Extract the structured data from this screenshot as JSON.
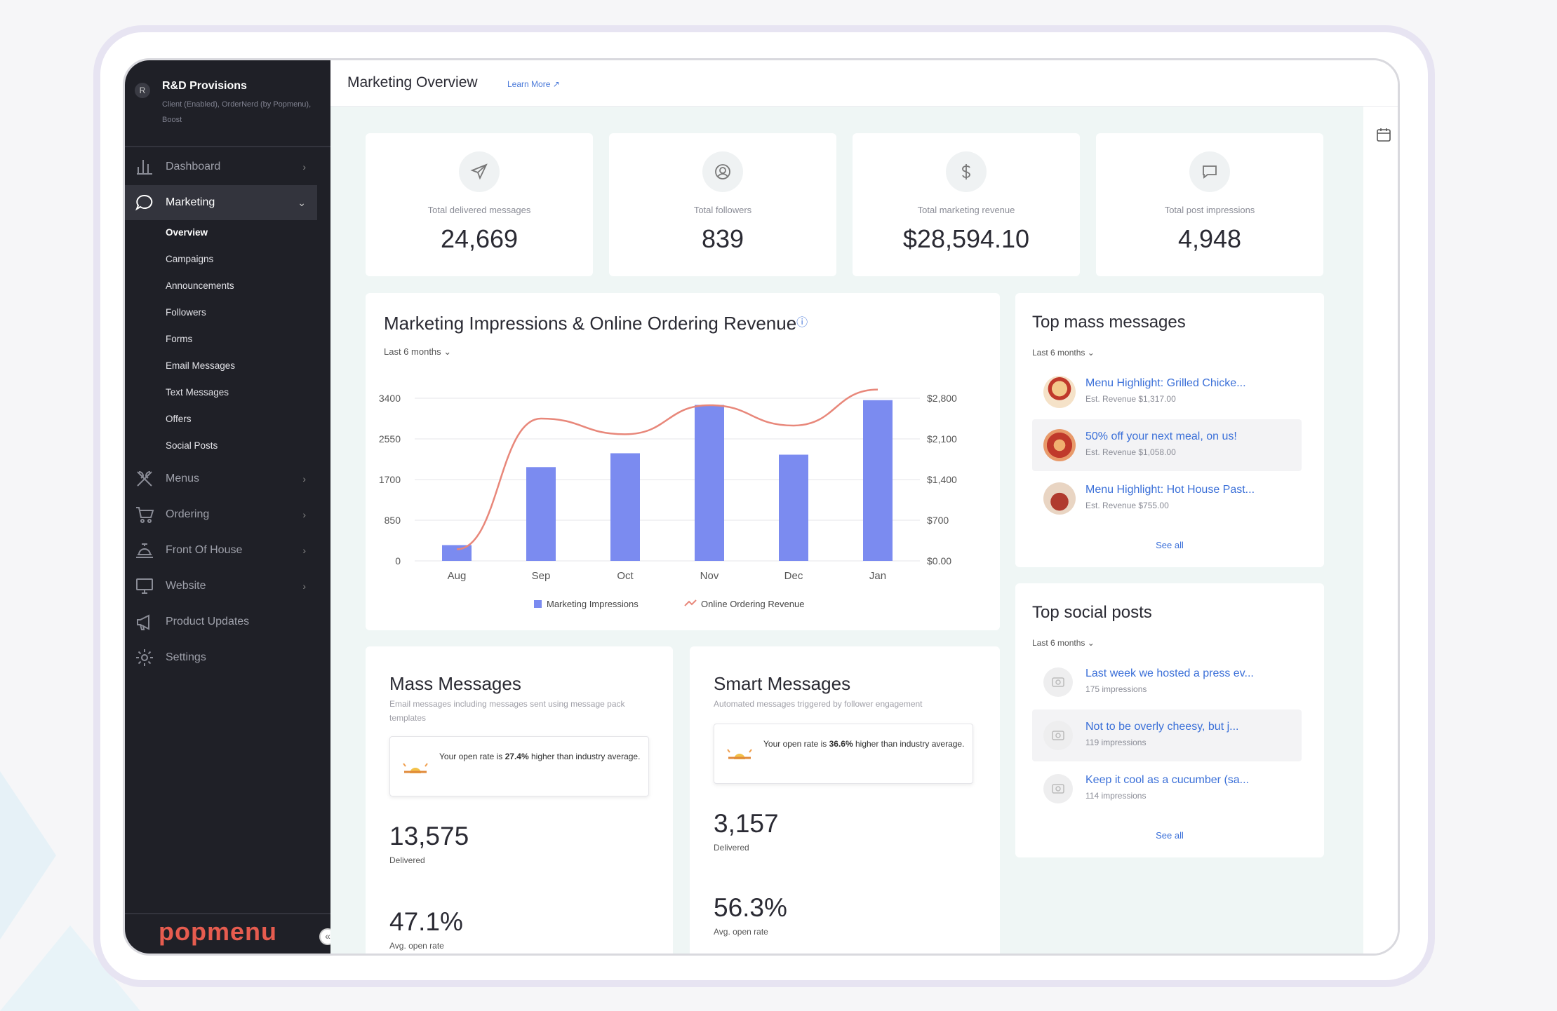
{
  "org": {
    "icon": "R",
    "name": "R&D Provisions",
    "subtitle": "Client (Enabled), OrderNerd (by Popmenu), Boost"
  },
  "nav": {
    "items": [
      {
        "label": "Dashboard",
        "icon": "bar-chart-icon"
      },
      {
        "label": "Marketing",
        "icon": "chat-bubble-icon"
      },
      {
        "label": "Menus",
        "icon": "utensils-icon"
      },
      {
        "label": "Ordering",
        "icon": "cart-icon"
      },
      {
        "label": "Front Of House",
        "icon": "service-bell-icon"
      },
      {
        "label": "Website",
        "icon": "monitor-icon"
      },
      {
        "label": "Product Updates",
        "icon": "megaphone-icon"
      },
      {
        "label": "Settings",
        "icon": "gear-icon"
      }
    ],
    "marketing_sub": [
      "Overview",
      "Campaigns",
      "Announcements",
      "Followers",
      "Forms",
      "Email Messages",
      "Text Messages",
      "Offers",
      "Social Posts"
    ],
    "chevron": "›",
    "chevron_open": "⌄"
  },
  "brand": "popmenu",
  "collapse_glyph": "«",
  "header": {
    "title": "Marketing Overview",
    "learn_more": "Learn More ↗"
  },
  "stats": [
    {
      "label": "Total delivered messages",
      "value": "24,669",
      "icon": "send-icon"
    },
    {
      "label": "Total followers",
      "value": "839",
      "icon": "user-circle-icon"
    },
    {
      "label": "Total marketing revenue",
      "value": "$28,594.10",
      "icon": "dollar-icon"
    },
    {
      "label": "Total post impressions",
      "value": "4,948",
      "icon": "comment-icon"
    }
  ],
  "chart_card": {
    "title": "Marketing Impressions & Online Ordering Revenue",
    "info": "ⓘ",
    "range": "Last 6 months ⌄"
  },
  "chart_data": {
    "type": "bar",
    "categories": [
      "Aug",
      "Sep",
      "Oct",
      "Nov",
      "Dec",
      "Jan"
    ],
    "series": [
      {
        "name": "Marketing Impressions",
        "type": "bar",
        "axis": "left",
        "color": "#7b8bf0",
        "values": [
          330,
          1960,
          2250,
          3260,
          2220,
          3360
        ]
      },
      {
        "name": "Online Ordering Revenue",
        "type": "line",
        "axis": "right",
        "color": "#e8877a",
        "values": [
          200,
          2450,
          2180,
          2680,
          2330,
          2950
        ]
      }
    ],
    "ylim": [
      0,
      3400
    ],
    "yticks": [
      "3400",
      "2550",
      "1700",
      "850",
      "0"
    ],
    "y2lim": [
      0,
      2800
    ],
    "y2ticks": [
      "$2,800",
      "$2,100",
      "$1,400",
      "$700",
      "$0.00"
    ],
    "legend": "bottom"
  },
  "top_mass": {
    "title": "Top mass messages",
    "range": "Last 6 months ⌄",
    "items": [
      {
        "title": "Menu Highlight: Grilled Chicke...",
        "sub": "Est. Revenue $1,317.00"
      },
      {
        "title": "50% off your next meal, on us!",
        "sub": "Est. Revenue $1,058.00"
      },
      {
        "title": "Menu Highlight: Hot House Past...",
        "sub": "Est. Revenue $755.00"
      }
    ],
    "see_all": "See all"
  },
  "top_social": {
    "title": "Top social posts",
    "range": "Last 6 months ⌄",
    "items": [
      {
        "title": "Last week we hosted a press ev...",
        "sub": "175 impressions"
      },
      {
        "title": "Not to be overly cheesy, but j...",
        "sub": "119 impressions"
      },
      {
        "title": "Keep it cool as a cucumber (sa...",
        "sub": "114 impressions"
      }
    ],
    "see_all": "See all"
  },
  "mass_messages": {
    "title": "Mass Messages",
    "desc": "Email messages including messages sent using message pack templates",
    "tip_pre": "Your open rate is ",
    "tip_pct": "27.4%",
    "tip_post": " higher than industry average.",
    "delivered": "13,575",
    "delivered_label": "Delivered",
    "open_rate": "47.1%",
    "open_label": "Avg. open rate"
  },
  "smart_messages": {
    "title": "Smart Messages",
    "desc": "Automated messages triggered by follower engagement",
    "tip_pre": "Your open rate is ",
    "tip_pct": "36.6%",
    "tip_post": " higher than industry average.",
    "delivered": "3,157",
    "delivered_label": "Delivered",
    "open_rate": "56.3%",
    "open_label": "Avg. open rate"
  }
}
